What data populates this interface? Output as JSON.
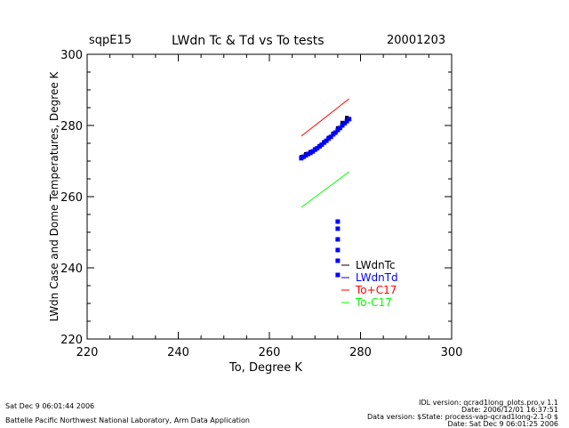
{
  "header": {
    "left": "sqpE15",
    "title": "LWdn Tc & Td vs To tests",
    "date": "20001203"
  },
  "footer": {
    "timestamp": "Sat Dec  9 06:01:44 2006",
    "lab": "Battelle Pacific Northwest National Laboratory, Arm Data Application",
    "idl_version": "IDL version: qcrad1long_plots.pro,v 1.1",
    "date_line": "Date: 2006/12/01 16:37:51",
    "data_version": "Data version: $State: process-vap-qcrad1long-2.1-0 $",
    "data_date": "Date: Sat Dec  9 06:01:25 2006"
  },
  "colors": {
    "LWdnTc": "#000000",
    "LWdnTd": "#0000ff",
    "To_plus_C17": "#ff0000",
    "To_minus_C17": "#00ff00"
  },
  "chart_data": {
    "type": "scatter",
    "title": "LWdn Tc & Td vs To tests",
    "xlabel": "To, Degree K",
    "ylabel": "LWdn Case and Dome Temperatures, Degree K",
    "xlim": [
      220,
      300
    ],
    "ylim": [
      220,
      300
    ],
    "xticks": [
      220,
      240,
      260,
      280,
      300
    ],
    "yticks": [
      220,
      240,
      260,
      280,
      300
    ],
    "grid": false,
    "legend_position": "lower-right inside plot",
    "series": [
      {
        "name": "LWdnTc",
        "style": "points",
        "x": [
          267,
          268,
          269,
          270,
          271,
          272,
          273,
          274,
          275,
          276,
          277
        ],
        "y": [
          271.2,
          272.0,
          272.6,
          273.4,
          274.3,
          275.4,
          276.6,
          277.8,
          279.3,
          280.8,
          282.2
        ]
      },
      {
        "name": "LWdnTd",
        "style": "points",
        "x": [
          267,
          267.5,
          268,
          268.5,
          269,
          269.5,
          270,
          270.5,
          271,
          271.5,
          272,
          272.5,
          273,
          273.5,
          274,
          274.5,
          275,
          275.5,
          276,
          276.5,
          277,
          277.5,
          275,
          275,
          275,
          275,
          275,
          275
        ],
        "y": [
          270.8,
          271.2,
          271.6,
          272.0,
          272.3,
          272.7,
          273.2,
          273.6,
          274.1,
          274.6,
          275.2,
          275.7,
          276.3,
          276.8,
          277.5,
          278.0,
          278.7,
          279.3,
          280.0,
          280.6,
          281.2,
          281.8,
          253,
          251,
          248,
          245,
          242,
          238
        ]
      },
      {
        "name": "To+C17",
        "style": "line",
        "x": [
          267,
          277.5
        ],
        "y": [
          277,
          287.5
        ]
      },
      {
        "name": "To-C17",
        "style": "line",
        "x": [
          267,
          277.5
        ],
        "y": [
          257,
          267
        ]
      }
    ]
  }
}
